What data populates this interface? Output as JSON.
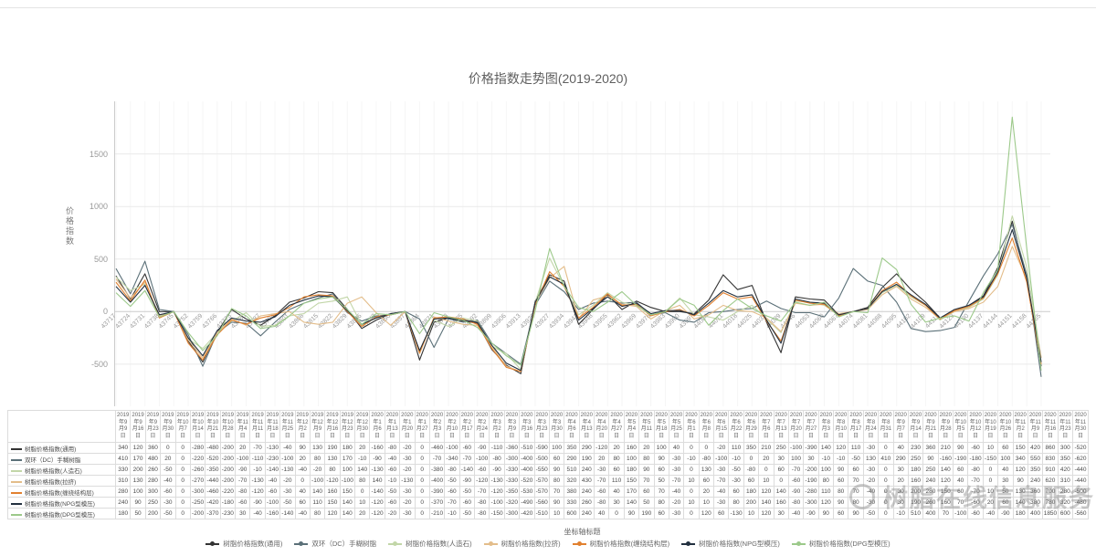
{
  "title": "价格指数走势图(2019-2020)",
  "y_axis_name": "价格指数",
  "x_axis_name": "坐标轴标题",
  "watermark_text": "树脂在线信息服务",
  "chart_data": {
    "type": "line",
    "title": "价格指数走势图(2019-2020)",
    "xlabel": "坐标轴标题",
    "ylabel": "价格指数",
    "ylim": [
      -900,
      2000
    ],
    "y_ticks": [
      1500,
      1000,
      500,
      0,
      -500
    ],
    "grid": true,
    "legend_position": "bottom",
    "x_tick_labels": [
      43717,
      43724,
      43731,
      43738,
      43745,
      43752,
      43759,
      43766,
      43773,
      43780,
      43787,
      43794,
      43801,
      43808,
      43815,
      43822,
      43829,
      43836,
      43843,
      43850,
      43857,
      43864,
      43871,
      43878,
      43885,
      43892,
      43899,
      43906,
      43913,
      43920,
      43927,
      43934,
      43941,
      43948,
      43955,
      43962,
      43969,
      43976,
      43983,
      43990,
      43997,
      44004,
      44011,
      44018,
      44025,
      44032,
      44039,
      44046,
      44053,
      44060,
      44067,
      44074,
      44081,
      44088,
      44095,
      44102,
      44109,
      44116,
      44123,
      44130,
      44137,
      44144,
      44151,
      44158,
      44165
    ],
    "categories": [
      "2019年9月9日",
      "2019年9月16日",
      "2019年9月23日",
      "2019年9月30日",
      "2019年10月7日",
      "2019年10月14日",
      "2019年10月21日",
      "2019年10月28日",
      "2019年11月4日",
      "2019年11月11日",
      "2019年11月18日",
      "2019年11月25日",
      "2019年12月2日",
      "2019年12月9日",
      "2019年12月16日",
      "2019年12月23日",
      "2019年12月30日",
      "2020年1月6日",
      "2020年1月13日",
      "2020年1月20日",
      "2020年1月27日",
      "2020年2月3日",
      "2020年2月10日",
      "2020年2月17日",
      "2020年2月24日",
      "2020年3月2日",
      "2020年3月9日",
      "2020年3月16日",
      "2020年3月23日",
      "2020年3月30日",
      "2020年4月6日",
      "2020年4月13日",
      "2020年4月20日",
      "2020年4月27日",
      "2020年5月4日",
      "2020年5月11日",
      "2020年5月18日",
      "2020年5月25日",
      "2020年6月1日",
      "2020年6月8日",
      "2020年6月15日",
      "2020年6月22日",
      "2020年6月29日",
      "2020年7月6日",
      "2020年7月13日",
      "2020年7月20日",
      "2020年7月27日",
      "2020年8月3日",
      "2020年8月10日",
      "2020年8月17日",
      "2020年8月24日",
      "2020年8月31日",
      "2020年9月7日",
      "2020年9月14日",
      "2020年9月21日",
      "2020年9月28日",
      "2020年10月5日",
      "2020年10月12日",
      "2020年10月19日",
      "2020年10月26日",
      "2020年11月2日",
      "2020年11月9日",
      "2020年11月16日",
      "2020年11月23日",
      "2020年11月30日"
    ],
    "series": [
      {
        "name": "树脂价格指数(通用)",
        "color": "#333333",
        "values": [
          340,
          120,
          360,
          0,
          0,
          -280,
          -480,
          -200,
          20,
          -70,
          -130,
          -40,
          90,
          130,
          190,
          180,
          20,
          -160,
          -80,
          -20,
          0,
          -460,
          -100,
          -60,
          -90,
          -110,
          -360,
          -510,
          -590,
          100,
          350,
          290,
          -120,
          20,
          160,
          20,
          100,
          40,
          0,
          0,
          -20,
          110,
          350,
          210,
          250,
          -100,
          -390,
          140,
          120,
          110,
          -30,
          0,
          40,
          230,
          360,
          210,
          90,
          -60,
          10,
          60,
          150,
          420,
          860,
          300,
          -520
        ]
      },
      {
        "name": "双环（DC）手糊树脂",
        "color": "#5b7078",
        "values": [
          410,
          170,
          480,
          20,
          0,
          -220,
          -520,
          -200,
          -100,
          -110,
          -230,
          -100,
          20,
          80,
          130,
          170,
          -10,
          -90,
          -40,
          -30,
          0,
          -70,
          -340,
          -70,
          -100,
          -80,
          -300,
          -400,
          -500,
          60,
          290,
          190,
          20,
          80,
          100,
          80,
          90,
          -30,
          -10,
          -80,
          -100,
          -10,
          0,
          20,
          30,
          100,
          30,
          -10,
          -10,
          -50,
          130,
          410,
          290,
          250,
          90,
          -160,
          -190,
          -180,
          -150,
          100,
          340,
          550,
          830,
          350,
          -620
        ]
      },
      {
        "name": "树脂价格指数(人造石)",
        "color": "#c2d6a8",
        "values": [
          330,
          200,
          260,
          -50,
          0,
          -260,
          -350,
          -200,
          -90,
          -10,
          -140,
          -130,
          -40,
          -20,
          80,
          100,
          140,
          -130,
          -60,
          -20,
          0,
          -380,
          -80,
          -140,
          -60,
          -90,
          -330,
          -400,
          -550,
          90,
          510,
          240,
          -30,
          60,
          180,
          90,
          60,
          -30,
          0,
          130,
          -30,
          -50,
          -80,
          0,
          60,
          -70,
          -200,
          100,
          90,
          60,
          -30,
          0,
          30,
          180,
          250,
          140,
          60,
          -80,
          0,
          40,
          120,
          350,
          910,
          420,
          -440
        ]
      },
      {
        "name": "树脂价格指数(拉挤)",
        "color": "#e3bd8a",
        "values": [
          310,
          130,
          280,
          -40,
          0,
          -270,
          -440,
          -200,
          -70,
          -130,
          -40,
          -20,
          0,
          -100,
          -120,
          -100,
          80,
          140,
          -10,
          -130,
          0,
          -400,
          -50,
          -90,
          -120,
          -130,
          -330,
          -520,
          -570,
          80,
          320,
          430,
          -70,
          110,
          150,
          70,
          50,
          -70,
          10,
          60,
          -70,
          -30,
          60,
          10,
          0,
          -60,
          -190,
          80,
          60,
          70,
          -20,
          0,
          20,
          160,
          240,
          120,
          40,
          -70,
          0,
          30,
          90,
          240,
          620,
          310,
          -440
        ]
      },
      {
        "name": "树脂价格指数(缠绕结构层)",
        "color": "#e1802f",
        "values": [
          280,
          100,
          300,
          -60,
          0,
          -300,
          -460,
          -220,
          -80,
          -120,
          -60,
          -30,
          40,
          140,
          160,
          150,
          0,
          -140,
          -50,
          -30,
          0,
          -390,
          -60,
          -50,
          -70,
          -120,
          -350,
          -530,
          -570,
          70,
          380,
          240,
          -60,
          40,
          170,
          60,
          70,
          -40,
          0,
          20,
          -40,
          60,
          180,
          120,
          140,
          -90,
          -280,
          110,
          80,
          70,
          -40,
          0,
          30,
          200,
          280,
          150,
          60,
          -70,
          10,
          50,
          130,
          360,
          700,
          280,
          -500
        ]
      },
      {
        "name": "树脂价格指数(NPG型模压)",
        "color": "#22303f",
        "values": [
          240,
          90,
          250,
          -30,
          0,
          -250,
          -420,
          -180,
          -60,
          -90,
          -100,
          -50,
          60,
          110,
          150,
          140,
          10,
          -120,
          -60,
          -20,
          0,
          -370,
          -70,
          -60,
          -80,
          -100,
          -320,
          -490,
          -560,
          90,
          330,
          260,
          -80,
          30,
          140,
          50,
          80,
          -20,
          10,
          10,
          -30,
          80,
          200,
          140,
          160,
          -80,
          -300,
          120,
          90,
          80,
          -30,
          0,
          30,
          190,
          260,
          160,
          70,
          -60,
          20,
          60,
          140,
          380,
          780,
          320,
          -480
        ]
      },
      {
        "name": "树脂价格指数(DPG型模压)",
        "color": "#9cc98a",
        "values": [
          180,
          50,
          200,
          -50,
          0,
          -200,
          -370,
          -230,
          30,
          -40,
          -160,
          -140,
          -40,
          80,
          120,
          140,
          20,
          -120,
          -20,
          -30,
          0,
          -210,
          -10,
          -50,
          -80,
          -150,
          -300,
          -420,
          -510,
          10,
          600,
          240,
          40,
          0,
          90,
          190,
          60,
          -30,
          0,
          120,
          60,
          -130,
          10,
          120,
          30,
          -40,
          -90,
          90,
          60,
          90,
          -50,
          0,
          -10,
          510,
          400,
          70,
          -100,
          -60,
          -40,
          -90,
          180,
          400,
          1850,
          600,
          -560
        ]
      }
    ]
  }
}
